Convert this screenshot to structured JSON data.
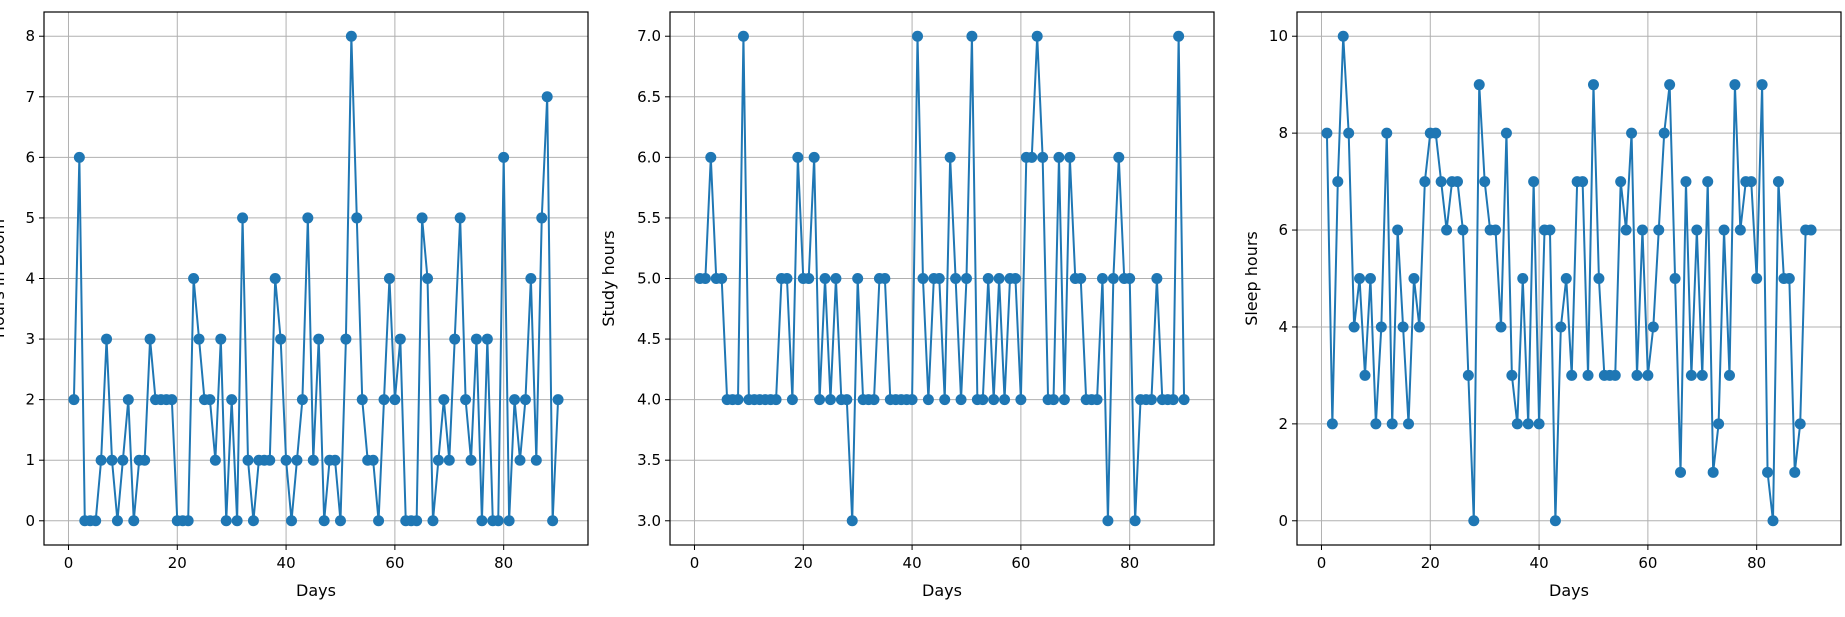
{
  "chart_data": [
    {
      "type": "line",
      "xlabel": "Days",
      "ylabel": "Hours in Doom",
      "xlim": [
        -4.5,
        95.5
      ],
      "ylim": [
        -0.4,
        8.4
      ],
      "xticks": [
        0,
        20,
        40,
        60,
        80
      ],
      "yticks": [
        0,
        1,
        2,
        3,
        4,
        5,
        6,
        7,
        8
      ],
      "ytick_labels": [
        "0",
        "1",
        "2",
        "3",
        "4",
        "5",
        "6",
        "7",
        "8"
      ],
      "grid": true,
      "color": "#1f77b4",
      "marker": "circle",
      "x": [
        1,
        2,
        3,
        4,
        5,
        6,
        7,
        8,
        9,
        10,
        11,
        12,
        13,
        14,
        15,
        16,
        17,
        18,
        19,
        20,
        21,
        22,
        23,
        24,
        25,
        26,
        27,
        28,
        29,
        30,
        31,
        32,
        33,
        34,
        35,
        36,
        37,
        38,
        39,
        40,
        41,
        42,
        43,
        44,
        45,
        46,
        47,
        48,
        49,
        50,
        51,
        52,
        53,
        54,
        55,
        56,
        57,
        58,
        59,
        60,
        61,
        62,
        63,
        64,
        65,
        66,
        67,
        68,
        69,
        70,
        71,
        72,
        73,
        74,
        75,
        76,
        77,
        78,
        79,
        80,
        81,
        82,
        83,
        84,
        85,
        86,
        87,
        88,
        89,
        90
      ],
      "y": [
        2,
        6,
        0,
        0,
        0,
        1,
        3,
        1,
        0,
        1,
        2,
        0,
        1,
        1,
        3,
        2,
        2,
        2,
        2,
        0,
        0,
        0,
        4,
        3,
        2,
        2,
        1,
        3,
        0,
        2,
        0,
        5,
        1,
        0,
        1,
        1,
        1,
        4,
        3,
        1,
        0,
        1,
        2,
        5,
        1,
        3,
        0,
        1,
        1,
        0,
        3,
        8,
        5,
        2,
        1,
        1,
        0,
        2,
        4,
        2,
        3,
        0,
        0,
        0,
        5,
        4,
        0,
        1,
        2,
        1,
        3,
        5,
        2,
        1,
        3,
        0,
        3,
        0,
        0,
        6,
        0,
        2,
        1,
        2,
        4,
        1,
        5,
        7,
        0,
        2
      ]
    },
    {
      "type": "line",
      "xlabel": "Days",
      "ylabel": "Study hours",
      "xlim": [
        -4.5,
        95.5
      ],
      "ylim": [
        2.8,
        7.2
      ],
      "xticks": [
        0,
        20,
        40,
        60,
        80
      ],
      "yticks": [
        3.0,
        3.5,
        4.0,
        4.5,
        5.0,
        5.5,
        6.0,
        6.5,
        7.0
      ],
      "ytick_labels": [
        "3.0",
        "3.5",
        "4.0",
        "4.5",
        "5.0",
        "5.5",
        "6.0",
        "6.5",
        "7.0"
      ],
      "grid": true,
      "color": "#1f77b4",
      "marker": "circle",
      "x": [
        1,
        2,
        3,
        4,
        5,
        6,
        7,
        8,
        9,
        10,
        11,
        12,
        13,
        14,
        15,
        16,
        17,
        18,
        19,
        20,
        21,
        22,
        23,
        24,
        25,
        26,
        27,
        28,
        29,
        30,
        31,
        32,
        33,
        34,
        35,
        36,
        37,
        38,
        39,
        40,
        41,
        42,
        43,
        44,
        45,
        46,
        47,
        48,
        49,
        50,
        51,
        52,
        53,
        54,
        55,
        56,
        57,
        58,
        59,
        60,
        61,
        62,
        63,
        64,
        65,
        66,
        67,
        68,
        69,
        70,
        71,
        72,
        73,
        74,
        75,
        76,
        77,
        78,
        79,
        80,
        81,
        82,
        83,
        84,
        85,
        86,
        87,
        88,
        89,
        90
      ],
      "y": [
        5,
        5,
        6,
        5,
        5,
        4,
        4,
        4,
        7,
        4,
        4,
        4,
        4,
        4,
        4,
        5,
        5,
        4,
        6,
        5,
        5,
        6,
        4,
        5,
        4,
        5,
        4,
        4,
        3,
        5,
        4,
        4,
        4,
        5,
        5,
        4,
        4,
        4,
        4,
        4,
        7,
        5,
        4,
        5,
        5,
        4,
        6,
        5,
        4,
        5,
        7,
        4,
        4,
        5,
        4,
        5,
        4,
        5,
        5,
        4,
        6,
        6,
        7,
        6,
        4,
        4,
        6,
        4,
        6,
        5,
        5,
        4,
        4,
        4,
        5,
        3,
        5,
        6,
        5,
        5,
        3,
        4,
        4,
        4,
        5,
        4,
        4,
        4,
        7,
        4
      ]
    },
    {
      "type": "line",
      "xlabel": "Days",
      "ylabel": "Sleep hours",
      "xlim": [
        -4.5,
        95.5
      ],
      "ylim": [
        -0.5,
        10.5
      ],
      "xticks": [
        0,
        20,
        40,
        60,
        80
      ],
      "yticks": [
        0,
        2,
        4,
        6,
        8,
        10
      ],
      "ytick_labels": [
        "0",
        "2",
        "4",
        "6",
        "8",
        "10"
      ],
      "grid": true,
      "color": "#1f77b4",
      "marker": "circle",
      "x": [
        1,
        2,
        3,
        4,
        5,
        6,
        7,
        8,
        9,
        10,
        11,
        12,
        13,
        14,
        15,
        16,
        17,
        18,
        19,
        20,
        21,
        22,
        23,
        24,
        25,
        26,
        27,
        28,
        29,
        30,
        31,
        32,
        33,
        34,
        35,
        36,
        37,
        38,
        39,
        40,
        41,
        42,
        43,
        44,
        45,
        46,
        47,
        48,
        49,
        50,
        51,
        52,
        53,
        54,
        55,
        56,
        57,
        58,
        59,
        60,
        61,
        62,
        63,
        64,
        65,
        66,
        67,
        68,
        69,
        70,
        71,
        72,
        73,
        74,
        75,
        76,
        77,
        78,
        79,
        80,
        81,
        82,
        83,
        84,
        85,
        86,
        87,
        88,
        89,
        90
      ],
      "y": [
        8,
        2,
        7,
        10,
        8,
        4,
        5,
        3,
        5,
        2,
        4,
        8,
        2,
        6,
        4,
        2,
        5,
        4,
        7,
        8,
        8,
        7,
        6,
        7,
        7,
        6,
        3,
        0,
        9,
        7,
        6,
        6,
        4,
        8,
        3,
        2,
        5,
        2,
        7,
        2,
        6,
        6,
        0,
        4,
        5,
        3,
        7,
        7,
        3,
        9,
        5,
        3,
        3,
        3,
        7,
        6,
        8,
        3,
        6,
        3,
        4,
        6,
        8,
        9,
        5,
        1,
        7,
        3,
        6,
        3,
        7,
        1,
        2,
        6,
        3,
        9,
        6,
        7,
        7,
        5,
        9,
        1,
        0,
        7,
        5,
        5,
        1,
        2,
        6,
        6
      ]
    }
  ]
}
